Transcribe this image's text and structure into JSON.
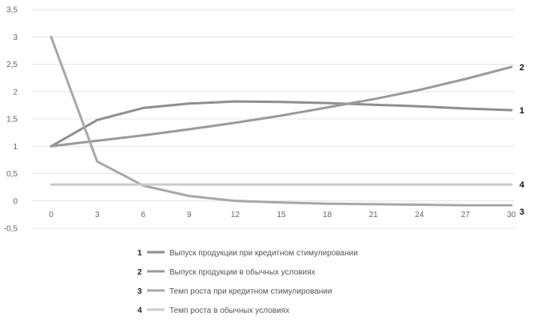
{
  "chart_data": {
    "type": "line",
    "title": "",
    "xlabel": "",
    "ylabel": "",
    "x": [
      0,
      3,
      6,
      9,
      12,
      15,
      18,
      21,
      24,
      27,
      30
    ],
    "x_tick_labels": [
      "0",
      "3",
      "6",
      "9",
      "12",
      "15",
      "18",
      "21",
      "24",
      "27",
      "30"
    ],
    "y_ticks": [
      -0.5,
      0,
      0.5,
      1,
      1.5,
      2,
      2.5,
      3,
      3.5
    ],
    "y_tick_labels": [
      "-0,5",
      "0",
      "0,5",
      "1",
      "1,5",
      "2",
      "2,5",
      "3",
      "3,5"
    ],
    "ylim": [
      -0.5,
      3.5
    ],
    "grid": true,
    "legend_position": "bottom",
    "series": [
      {
        "id": "1",
        "name": "Выпуск продукции при кредитном стимулировании",
        "end_label": "1",
        "color": "#8f8f8f",
        "values": [
          1.0,
          1.48,
          1.7,
          1.78,
          1.82,
          1.81,
          1.79,
          1.76,
          1.73,
          1.69,
          1.66
        ]
      },
      {
        "id": "2",
        "name": "Выпуск продукции в обычных условиях",
        "end_label": "2",
        "color": "#9a9a9a",
        "values": [
          1.0,
          1.1,
          1.2,
          1.31,
          1.43,
          1.56,
          1.71,
          1.86,
          2.03,
          2.23,
          2.45
        ]
      },
      {
        "id": "3",
        "name": "Темп роста при кредитном стимулировании",
        "end_label": "3",
        "color": "#a8a8a8",
        "values": [
          3.0,
          0.72,
          0.28,
          0.09,
          0.0,
          -0.03,
          -0.05,
          -0.06,
          -0.07,
          -0.08,
          -0.08
        ]
      },
      {
        "id": "4",
        "name": "Темп роста в обычных условиях",
        "end_label": "4",
        "color": "#cccccc",
        "values": [
          0.3,
          0.3,
          0.3,
          0.3,
          0.3,
          0.3,
          0.3,
          0.3,
          0.3,
          0.3,
          0.3
        ]
      }
    ]
  }
}
